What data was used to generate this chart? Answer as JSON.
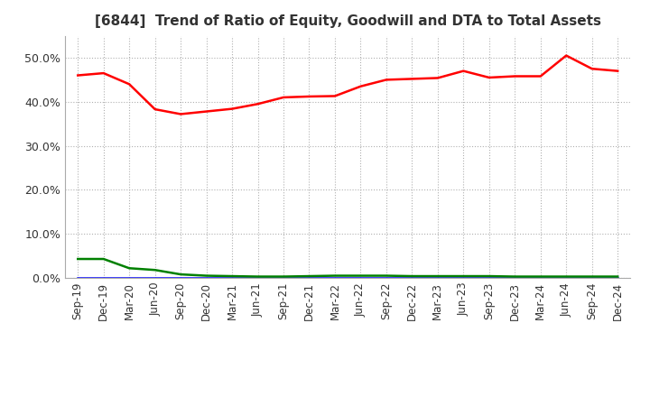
{
  "title": "[6844]  Trend of Ratio of Equity, Goodwill and DTA to Total Assets",
  "x_labels": [
    "Sep-19",
    "Dec-19",
    "Mar-20",
    "Jun-20",
    "Sep-20",
    "Dec-20",
    "Mar-21",
    "Jun-21",
    "Sep-21",
    "Dec-21",
    "Mar-22",
    "Jun-22",
    "Sep-22",
    "Dec-22",
    "Mar-23",
    "Jun-23",
    "Sep-23",
    "Dec-23",
    "Mar-24",
    "Jun-24",
    "Sep-24",
    "Dec-24"
  ],
  "equity": [
    0.46,
    0.465,
    0.44,
    0.383,
    0.372,
    0.378,
    0.384,
    0.395,
    0.41,
    0.412,
    0.413,
    0.435,
    0.45,
    0.452,
    0.454,
    0.47,
    0.455,
    0.458,
    0.458,
    0.505,
    0.475,
    0.47
  ],
  "goodwill": [
    0.0,
    0.0,
    0.0,
    0.0,
    0.0,
    0.0,
    0.0,
    0.0,
    0.0,
    0.0,
    0.0,
    0.0,
    0.0,
    0.0,
    0.0,
    0.0,
    0.0,
    0.0,
    0.0,
    0.0,
    0.0,
    0.0
  ],
  "dta": [
    0.043,
    0.043,
    0.022,
    0.018,
    0.008,
    0.005,
    0.004,
    0.003,
    0.003,
    0.004,
    0.005,
    0.005,
    0.005,
    0.004,
    0.004,
    0.004,
    0.004,
    0.003,
    0.003,
    0.003,
    0.003,
    0.003
  ],
  "equity_color": "#ff0000",
  "goodwill_color": "#0000ff",
  "dta_color": "#008000",
  "ylim": [
    0.0,
    0.55
  ],
  "yticks": [
    0.0,
    0.1,
    0.2,
    0.3,
    0.4,
    0.5
  ],
  "background_color": "#ffffff",
  "grid_color": "#b0b0b0",
  "title_fontsize": 11,
  "tick_fontsize": 8.5,
  "ytick_fontsize": 9
}
